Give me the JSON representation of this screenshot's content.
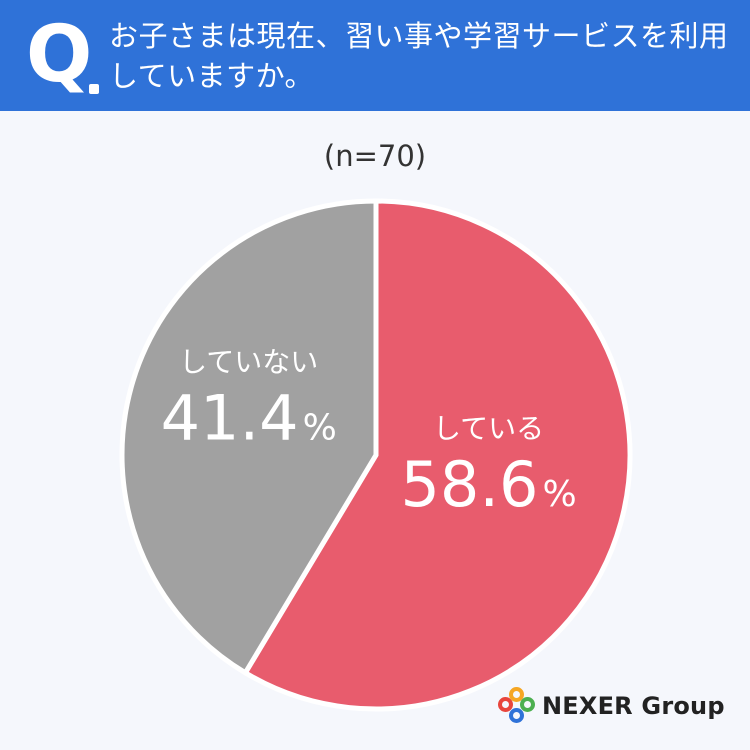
{
  "header": {
    "q_letter": "Q",
    "question": "お子さまは現在、習い事や学習サービスを利用していますか。",
    "background_color": "#2f72d8"
  },
  "chart_data": {
    "type": "pie",
    "subtitle": "(n=70)",
    "slices": [
      {
        "label": "している",
        "value": 58.6,
        "display": "58.6",
        "unit": "%",
        "color": "#e85c6d"
      },
      {
        "label": "していない",
        "value": 41.4,
        "display": "41.4",
        "unit": "%",
        "color": "#a1a1a1"
      }
    ],
    "start": "12 o'clock",
    "direction": "clockwise"
  },
  "logo": {
    "text": "NEXER Group",
    "ring_colors": [
      "#e8453c",
      "#f5a623",
      "#4caf50",
      "#2f72d8"
    ]
  }
}
